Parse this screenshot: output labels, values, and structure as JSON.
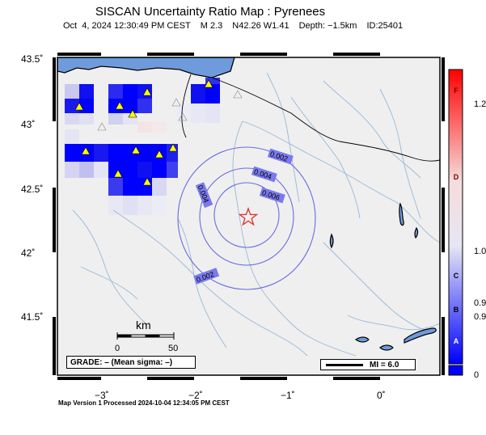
{
  "title": "SISCAN Uncertainty Ratio Map : Pyrenees",
  "subtitle": {
    "datetime": "Oct  4, 2024 12:30:49 PM CEST",
    "magnitude": "M 2.3",
    "location": "N42.26 W1.41",
    "depth": "Depth: −1.5km",
    "id": "ID:25401"
  },
  "axes": {
    "latitudes": [
      "43.5˚",
      "43˚",
      "42.5˚",
      "42˚",
      "41.5˚"
    ],
    "longitudes": [
      "−3˚",
      "−2˚",
      "−1˚",
      "0˚"
    ]
  },
  "scale_bar": {
    "unit": "km",
    "start": "0",
    "end": "50"
  },
  "grade_label": "GRADE: – (Mean sigma: –)",
  "mi_label": "MI = 6.0",
  "footer": "Map Version 1 Processed 2024-10-04 12:34:05 PM CEST",
  "colorbar": {
    "letters": [
      "F",
      "D",
      "C",
      "B",
      "A"
    ],
    "ticks": [
      "1.2",
      "1.0",
      "0.9",
      "0.9",
      "0"
    ],
    "colors": {
      "low": "#0000ff",
      "mid": "#f4f4f4",
      "high": "#ff0000"
    }
  },
  "contours": [
    "0.002",
    "0.004",
    "0.006",
    "0.004",
    "0.002"
  ],
  "epicenter_icon": "star-icon",
  "station_icon": "triangle-icon",
  "colors": {
    "land": "#efefef",
    "sea": "#6f9bdc",
    "river": "#9ab8d8",
    "contour": "#6a6ae0",
    "epicenter": "#e03030",
    "station": "#ffff00"
  }
}
